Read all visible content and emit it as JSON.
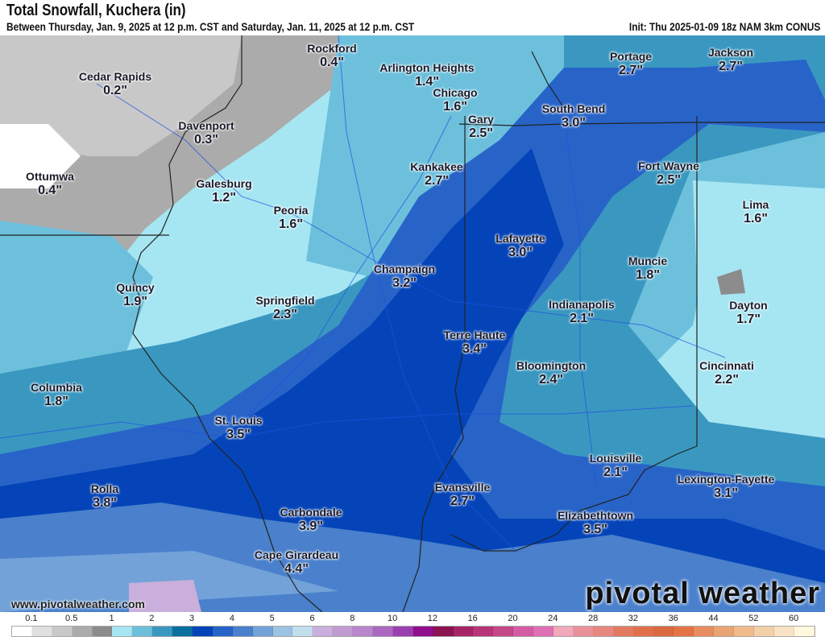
{
  "header": {
    "title": "Total Snowfall, Kuchera (in)",
    "subtitle": "Between Thursday, Jan. 9, 2025 at 12 p.m. CST and Saturday, Jan. 11, 2025 at 12 p.m. CST",
    "init": "Init: Thu 2025-01-09 18z NAM 3km CONUS"
  },
  "cities": [
    {
      "name": "Rockford",
      "value": "0.4\""
    },
    {
      "name": "Arlington Heights",
      "value": "1.4\""
    },
    {
      "name": "Chicago",
      "value": "1.6\""
    },
    {
      "name": "Gary",
      "value": "2.5\""
    },
    {
      "name": "Cedar Rapids",
      "value": "0.2\""
    },
    {
      "name": "Davenport",
      "value": "0.3\""
    },
    {
      "name": "Ottumwa",
      "value": "0.4\""
    },
    {
      "name": "Galesburg",
      "value": "1.2\""
    },
    {
      "name": "Peoria",
      "value": "1.6\""
    },
    {
      "name": "Kankakee",
      "value": "2.7\""
    },
    {
      "name": "South Bend",
      "value": "3.0\""
    },
    {
      "name": "Portage",
      "value": "2.7\""
    },
    {
      "name": "Jackson",
      "value": "2.7\""
    },
    {
      "name": "Fort Wayne",
      "value": "2.5\""
    },
    {
      "name": "Lima",
      "value": "1.6\""
    },
    {
      "name": "Lafayette",
      "value": "3.0\""
    },
    {
      "name": "Champaign",
      "value": "3.2\""
    },
    {
      "name": "Muncie",
      "value": "1.8\""
    },
    {
      "name": "Quincy",
      "value": "1.9\""
    },
    {
      "name": "Springfield",
      "value": "2.3\""
    },
    {
      "name": "Indianapolis",
      "value": "2.1\""
    },
    {
      "name": "Dayton",
      "value": "1.7\""
    },
    {
      "name": "Terre Haute",
      "value": "3.4\""
    },
    {
      "name": "Bloomington",
      "value": "2.4\""
    },
    {
      "name": "Cincinnati",
      "value": "2.2\""
    },
    {
      "name": "Columbia",
      "value": "1.8\""
    },
    {
      "name": "St. Louis",
      "value": "3.5\""
    },
    {
      "name": "Louisville",
      "value": "2.1\""
    },
    {
      "name": "Lexington-Fayette",
      "value": "3.1\""
    },
    {
      "name": "Rolla",
      "value": "3.8\""
    },
    {
      "name": "Evansville",
      "value": "2.7\""
    },
    {
      "name": "Carbondale",
      "value": "3.9\""
    },
    {
      "name": "Elizabethtown",
      "value": "3.5\""
    },
    {
      "name": "Cape Girardeau",
      "value": "4.4\""
    }
  ],
  "watermark": "www.pivotalweather.com",
  "logo": "pivotal weather",
  "legend": {
    "labels": [
      "0.1",
      "0.5",
      "1",
      "2",
      "3",
      "4",
      "5",
      "6",
      "8",
      "10",
      "12",
      "16",
      "20",
      "24",
      "28",
      "32",
      "36",
      "44",
      "52",
      "60"
    ],
    "colors": [
      "#ffffff",
      "#e0e0e0",
      "#c8c8c8",
      "#ababab",
      "#8c8c8c",
      "#a6e6f2",
      "#6cc0dc",
      "#3a98c0",
      "#0a70a0",
      "#0444b8",
      "#2864c8",
      "#4a80cc",
      "#72a2d8",
      "#9cc2e2",
      "#c2dfee",
      "#caaedc",
      "#c29ad2",
      "#b886cc",
      "#aa68c0",
      "#9a40b0",
      "#90108e",
      "#8c1450",
      "#a82468",
      "#b83478",
      "#c44888",
      "#d45ca4",
      "#e070b4",
      "#f0a8ba",
      "#ea9098",
      "#e88680",
      "#e27a60",
      "#e0704a",
      "#da6a42",
      "#e47446",
      "#e88c62",
      "#eaa474",
      "#f0ba8a",
      "#f2d0a8",
      "#f8e4c4",
      "#fff8dc"
    ]
  }
}
